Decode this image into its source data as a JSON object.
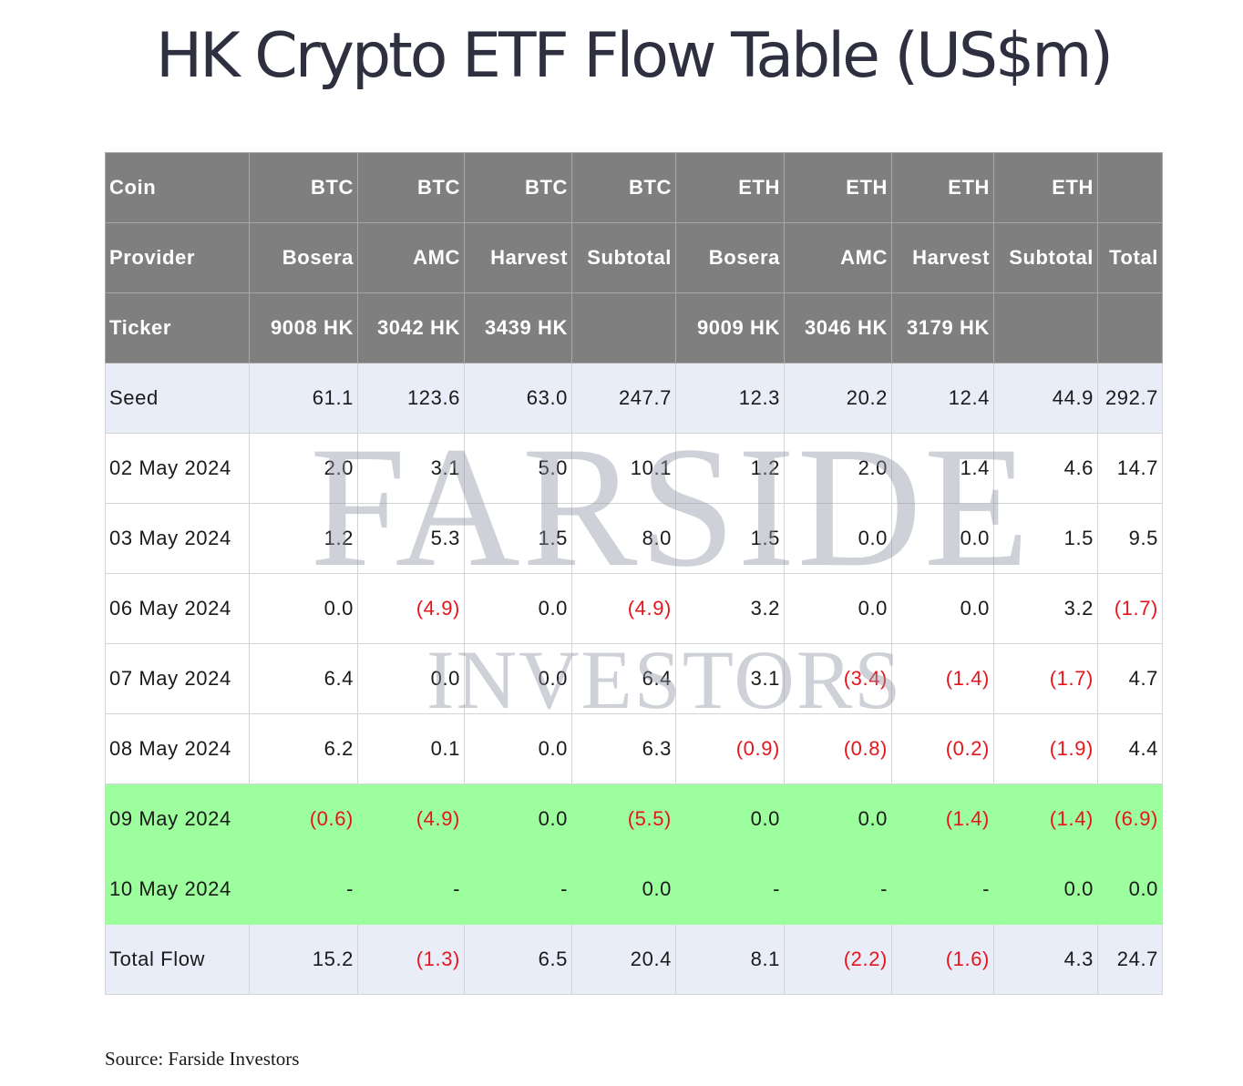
{
  "title": "HK Crypto ETF Flow Table (US$m)",
  "watermark": {
    "line1": "FARSIDE",
    "line2": "INVESTORS"
  },
  "header_rows": [
    {
      "label": "Coin",
      "cells": [
        "BTC",
        "BTC",
        "BTC",
        "BTC",
        "ETH",
        "ETH",
        "ETH",
        "ETH",
        ""
      ]
    },
    {
      "label": "Provider",
      "cells": [
        "Bosera",
        "AMC",
        "Harvest",
        "Subtotal",
        "Bosera",
        "AMC",
        "Harvest",
        "Subtotal",
        "Total"
      ]
    },
    {
      "label": "Ticker",
      "cells": [
        "9008 HK",
        "3042 HK",
        "3439 HK",
        "",
        "9009 HK",
        "3046 HK",
        "3179 HK",
        "",
        ""
      ]
    }
  ],
  "rows": [
    {
      "label": "Seed",
      "style": "seed",
      "cells": [
        "61.1",
        "123.6",
        "63.0",
        "247.7",
        "12.3",
        "20.2",
        "12.4",
        "44.9",
        "292.7"
      ]
    },
    {
      "label": "02 May 2024",
      "style": "white",
      "cells": [
        "2.0",
        "3.1",
        "5.0",
        "10.1",
        "1.2",
        "2.0",
        "1.4",
        "4.6",
        "14.7"
      ]
    },
    {
      "label": "03 May 2024",
      "style": "white",
      "cells": [
        "1.2",
        "5.3",
        "1.5",
        "8.0",
        "1.5",
        "0.0",
        "0.0",
        "1.5",
        "9.5"
      ]
    },
    {
      "label": "06 May 2024",
      "style": "white",
      "cells": [
        "0.0",
        "(4.9)",
        "0.0",
        "(4.9)",
        "3.2",
        "0.0",
        "0.0",
        "3.2",
        "(1.7)"
      ]
    },
    {
      "label": "07 May 2024",
      "style": "white",
      "cells": [
        "6.4",
        "0.0",
        "0.0",
        "6.4",
        "3.1",
        "(3.4)",
        "(1.4)",
        "(1.7)",
        "4.7"
      ]
    },
    {
      "label": "08 May 2024",
      "style": "white",
      "cells": [
        "6.2",
        "0.1",
        "0.0",
        "6.3",
        "(0.9)",
        "(0.8)",
        "(0.2)",
        "(1.9)",
        "4.4"
      ]
    },
    {
      "label": "09 May 2024",
      "style": "green",
      "cells": [
        "(0.6)",
        "(4.9)",
        "0.0",
        "(5.5)",
        "0.0",
        "0.0",
        "(1.4)",
        "(1.4)",
        "(6.9)"
      ]
    },
    {
      "label": "10 May 2024",
      "style": "green",
      "cells": [
        "-",
        "-",
        "-",
        "0.0",
        "-",
        "-",
        "-",
        "0.0",
        "0.0"
      ]
    },
    {
      "label": "Total Flow",
      "style": "total",
      "cells": [
        "15.2",
        "(1.3)",
        "6.5",
        "20.4",
        "8.1",
        "(2.2)",
        "(1.6)",
        "4.3",
        "24.7"
      ]
    }
  ],
  "source": "Source: Farside Investors",
  "colors": {
    "header_bg": "#7f7f7f",
    "band_bg": "#e9edf8",
    "highlight_bg": "#9cfe9c",
    "negative": "#e8141b",
    "title": "#2e3040"
  }
}
